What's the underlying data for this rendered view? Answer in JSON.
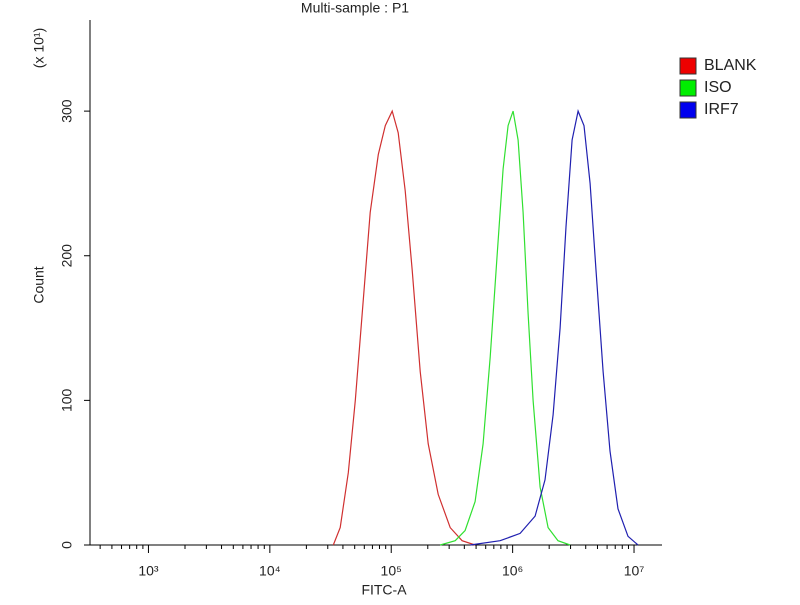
{
  "chart_data": {
    "type": "line",
    "title": "Multi-sample : P1",
    "x_label": "FITC-A",
    "y_label": "Count",
    "y_multiplier": "(x 10¹)",
    "x_log": true,
    "xlim": [
      330,
      17000000
    ],
    "ylim": [
      0,
      363
    ],
    "xticks": [
      {
        "value": 1000,
        "label": "10³"
      },
      {
        "value": 10000,
        "label": "10⁴"
      },
      {
        "value": 100000,
        "label": "10⁵"
      },
      {
        "value": 1000000,
        "label": "10⁶"
      },
      {
        "value": 10000000,
        "label": "10⁷"
      }
    ],
    "xminor_ticks": [
      400,
      500,
      600,
      700,
      800,
      900,
      2000,
      3000,
      4000,
      5000,
      6000,
      7000,
      8000,
      9000,
      20000,
      30000,
      40000,
      50000,
      60000,
      70000,
      80000,
      90000,
      200000,
      300000,
      400000,
      500000,
      600000,
      700000,
      800000,
      900000,
      2000000,
      3000000,
      4000000,
      5000000,
      6000000,
      7000000,
      8000000,
      9000000
    ],
    "yticks": [
      0,
      100,
      200,
      300
    ],
    "legend_position": "right",
    "series": [
      {
        "name": "BLANK",
        "color": "#d03030",
        "legend_color": "#ee0000",
        "x": [
          33300,
          38000,
          44300,
          50600,
          57700,
          67100,
          78200,
          89300,
          101900,
          114200,
          130300,
          148900,
          173300,
          201700,
          243800,
          306200,
          383800,
          491000
        ],
        "values": [
          0,
          12,
          50,
          100,
          160,
          230,
          270,
          290,
          300,
          285,
          245,
          190,
          120,
          70,
          35,
          12,
          3,
          0
        ]
      },
      {
        "name": "ISO",
        "color": "#30e030",
        "legend_color": "#00ee00",
        "x": [
          253000,
          336500,
          406000,
          491000,
          571000,
          653000,
          745000,
          835000,
          918000,
          1009000,
          1109000,
          1219000,
          1342000,
          1475000,
          1683000,
          1959000,
          2366000,
          2972000
        ],
        "values": [
          0,
          3,
          10,
          30,
          70,
          130,
          200,
          260,
          290,
          300,
          280,
          230,
          160,
          100,
          40,
          12,
          3,
          0
        ]
      },
      {
        "name": "IRF7",
        "color": "#2020b0",
        "legend_color": "#0000ee",
        "x": [
          447000,
          788000,
          1153000,
          1531000,
          1849000,
          2153000,
          2459000,
          2754000,
          3090000,
          3459000,
          3874000,
          4345000,
          4864000,
          5559000,
          6339000,
          7379000,
          8925000,
          10790000
        ],
        "values": [
          0,
          3,
          8,
          20,
          45,
          90,
          150,
          220,
          280,
          300,
          290,
          250,
          190,
          120,
          65,
          25,
          6,
          0
        ]
      }
    ]
  }
}
